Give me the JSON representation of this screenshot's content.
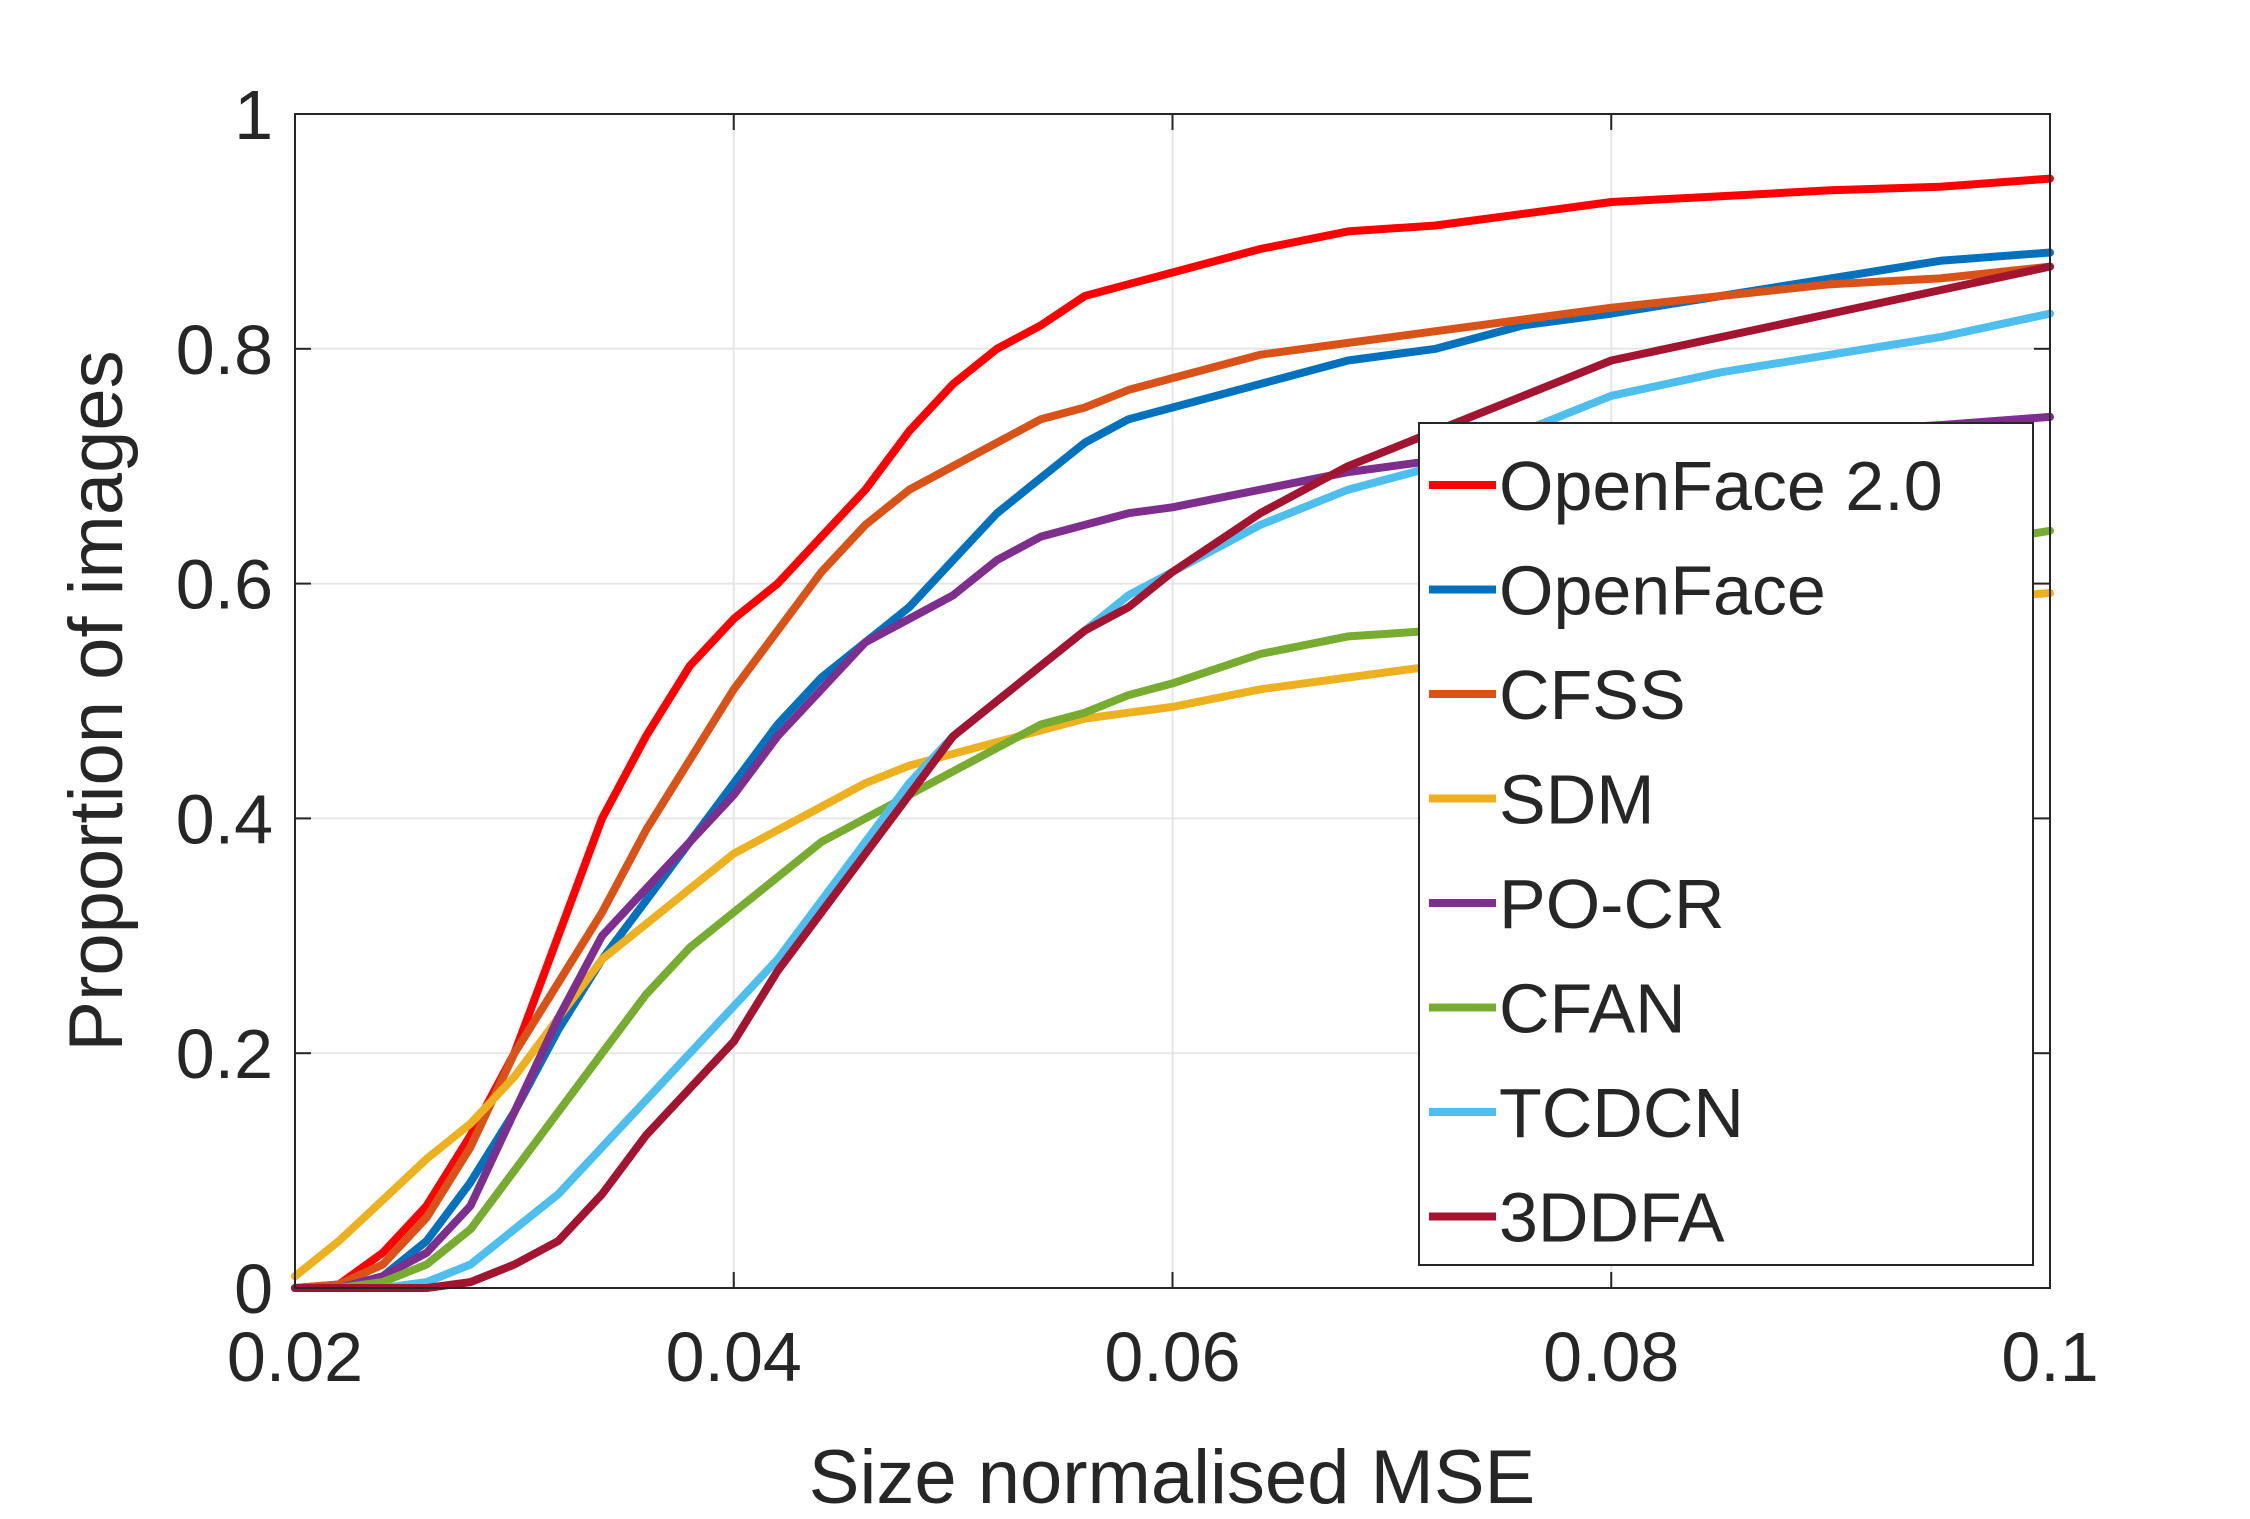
{
  "chart_data": {
    "type": "line",
    "xlabel": "Size normalised MSE",
    "ylabel": "Proportion of images",
    "xlim": [
      0.02,
      0.1
    ],
    "ylim": [
      0,
      1
    ],
    "x_ticks": [
      "0.02",
      "0.04",
      "0.06",
      "0.08",
      "0.1"
    ],
    "y_ticks": [
      "0",
      "0.2",
      "0.4",
      "0.6",
      "0.8",
      "1"
    ],
    "grid": true,
    "legend_position": "bottom-right",
    "series": [
      {
        "name": "OpenFace 2.0",
        "color": "#ff0000",
        "x": [
          0.02,
          0.022,
          0.024,
          0.026,
          0.028,
          0.03,
          0.032,
          0.034,
          0.036,
          0.038,
          0.04,
          0.042,
          0.044,
          0.046,
          0.048,
          0.05,
          0.052,
          0.054,
          0.056,
          0.058,
          0.06,
          0.064,
          0.068,
          0.072,
          0.076,
          0.08,
          0.085,
          0.09,
          0.095,
          0.1
        ],
        "y": [
          0,
          0.003,
          0.03,
          0.07,
          0.13,
          0.2,
          0.3,
          0.4,
          0.47,
          0.53,
          0.57,
          0.6,
          0.64,
          0.68,
          0.73,
          0.77,
          0.8,
          0.82,
          0.845,
          0.855,
          0.865,
          0.885,
          0.9,
          0.905,
          0.915,
          0.925,
          0.93,
          0.935,
          0.938,
          0.945
        ]
      },
      {
        "name": "OpenFace",
        "color": "#0072bd",
        "x": [
          0.02,
          0.022,
          0.024,
          0.026,
          0.028,
          0.03,
          0.032,
          0.034,
          0.036,
          0.038,
          0.04,
          0.042,
          0.044,
          0.046,
          0.048,
          0.05,
          0.052,
          0.054,
          0.056,
          0.058,
          0.06,
          0.064,
          0.068,
          0.072,
          0.076,
          0.08,
          0.085,
          0.09,
          0.095,
          0.1
        ],
        "y": [
          0,
          0,
          0.01,
          0.04,
          0.09,
          0.15,
          0.22,
          0.28,
          0.33,
          0.38,
          0.43,
          0.48,
          0.52,
          0.55,
          0.58,
          0.62,
          0.66,
          0.69,
          0.72,
          0.74,
          0.75,
          0.77,
          0.79,
          0.8,
          0.82,
          0.83,
          0.845,
          0.86,
          0.875,
          0.882
        ]
      },
      {
        "name": "CFSS",
        "color": "#d95319",
        "x": [
          0.02,
          0.022,
          0.024,
          0.026,
          0.028,
          0.03,
          0.032,
          0.034,
          0.036,
          0.038,
          0.04,
          0.042,
          0.044,
          0.046,
          0.048,
          0.05,
          0.052,
          0.054,
          0.056,
          0.058,
          0.06,
          0.064,
          0.068,
          0.072,
          0.076,
          0.08,
          0.085,
          0.09,
          0.095,
          0.1
        ],
        "y": [
          0,
          0.003,
          0.02,
          0.06,
          0.12,
          0.2,
          0.26,
          0.32,
          0.39,
          0.45,
          0.51,
          0.56,
          0.61,
          0.65,
          0.68,
          0.7,
          0.72,
          0.74,
          0.75,
          0.765,
          0.775,
          0.795,
          0.805,
          0.815,
          0.825,
          0.835,
          0.845,
          0.855,
          0.86,
          0.87
        ]
      },
      {
        "name": "SDM",
        "color": "#edb120",
        "x": [
          0.02,
          0.022,
          0.024,
          0.026,
          0.028,
          0.03,
          0.032,
          0.034,
          0.036,
          0.038,
          0.04,
          0.042,
          0.044,
          0.046,
          0.048,
          0.05,
          0.052,
          0.054,
          0.056,
          0.058,
          0.06,
          0.064,
          0.068,
          0.072,
          0.076,
          0.08,
          0.085,
          0.09,
          0.095,
          0.1
        ],
        "y": [
          0.01,
          0.04,
          0.075,
          0.11,
          0.14,
          0.18,
          0.23,
          0.28,
          0.31,
          0.34,
          0.37,
          0.39,
          0.41,
          0.43,
          0.445,
          0.455,
          0.465,
          0.475,
          0.485,
          0.49,
          0.495,
          0.51,
          0.52,
          0.53,
          0.54,
          0.55,
          0.56,
          0.575,
          0.585,
          0.592
        ]
      },
      {
        "name": "PO-CR",
        "color": "#7e2f8e",
        "x": [
          0.02,
          0.022,
          0.024,
          0.026,
          0.028,
          0.03,
          0.032,
          0.034,
          0.036,
          0.038,
          0.04,
          0.042,
          0.044,
          0.046,
          0.048,
          0.05,
          0.052,
          0.054,
          0.056,
          0.058,
          0.06,
          0.064,
          0.068,
          0.072,
          0.076,
          0.08,
          0.085,
          0.09,
          0.095,
          0.1
        ],
        "y": [
          0,
          0,
          0.01,
          0.03,
          0.07,
          0.15,
          0.23,
          0.3,
          0.34,
          0.38,
          0.42,
          0.47,
          0.51,
          0.55,
          0.57,
          0.59,
          0.62,
          0.64,
          0.65,
          0.66,
          0.665,
          0.68,
          0.695,
          0.705,
          0.71,
          0.715,
          0.72,
          0.73,
          0.735,
          0.742
        ]
      },
      {
        "name": "CFAN",
        "color": "#77ac30",
        "x": [
          0.02,
          0.022,
          0.024,
          0.026,
          0.028,
          0.03,
          0.032,
          0.034,
          0.036,
          0.038,
          0.04,
          0.042,
          0.044,
          0.046,
          0.048,
          0.05,
          0.052,
          0.054,
          0.056,
          0.058,
          0.06,
          0.064,
          0.068,
          0.072,
          0.076,
          0.08,
          0.085,
          0.09,
          0.095,
          0.1
        ],
        "y": [
          0,
          0,
          0.005,
          0.02,
          0.05,
          0.1,
          0.15,
          0.2,
          0.25,
          0.29,
          0.32,
          0.35,
          0.38,
          0.4,
          0.42,
          0.44,
          0.46,
          0.48,
          0.49,
          0.505,
          0.515,
          0.54,
          0.555,
          0.56,
          0.575,
          0.59,
          0.605,
          0.62,
          0.63,
          0.645
        ]
      },
      {
        "name": "TCDCN",
        "color": "#4dbeee",
        "x": [
          0.02,
          0.022,
          0.024,
          0.026,
          0.028,
          0.03,
          0.032,
          0.034,
          0.036,
          0.038,
          0.04,
          0.042,
          0.044,
          0.046,
          0.048,
          0.05,
          0.052,
          0.054,
          0.056,
          0.058,
          0.06,
          0.064,
          0.068,
          0.072,
          0.076,
          0.08,
          0.085,
          0.09,
          0.095,
          0.1
        ],
        "y": [
          0,
          0,
          0,
          0.005,
          0.02,
          0.05,
          0.08,
          0.12,
          0.16,
          0.2,
          0.24,
          0.28,
          0.33,
          0.38,
          0.43,
          0.47,
          0.5,
          0.53,
          0.56,
          0.59,
          0.61,
          0.65,
          0.68,
          0.7,
          0.73,
          0.76,
          0.78,
          0.795,
          0.81,
          0.83
        ]
      },
      {
        "name": "3DDFA",
        "color": "#a2142f",
        "x": [
          0.02,
          0.022,
          0.024,
          0.026,
          0.028,
          0.03,
          0.032,
          0.034,
          0.036,
          0.038,
          0.04,
          0.042,
          0.044,
          0.046,
          0.048,
          0.05,
          0.052,
          0.054,
          0.056,
          0.058,
          0.06,
          0.064,
          0.068,
          0.072,
          0.076,
          0.08,
          0.085,
          0.09,
          0.095,
          0.1
        ],
        "y": [
          0,
          0,
          0,
          0,
          0.005,
          0.02,
          0.04,
          0.08,
          0.13,
          0.17,
          0.21,
          0.27,
          0.32,
          0.37,
          0.42,
          0.47,
          0.5,
          0.53,
          0.56,
          0.58,
          0.61,
          0.66,
          0.7,
          0.73,
          0.76,
          0.79,
          0.81,
          0.83,
          0.85,
          0.87
        ]
      }
    ]
  }
}
